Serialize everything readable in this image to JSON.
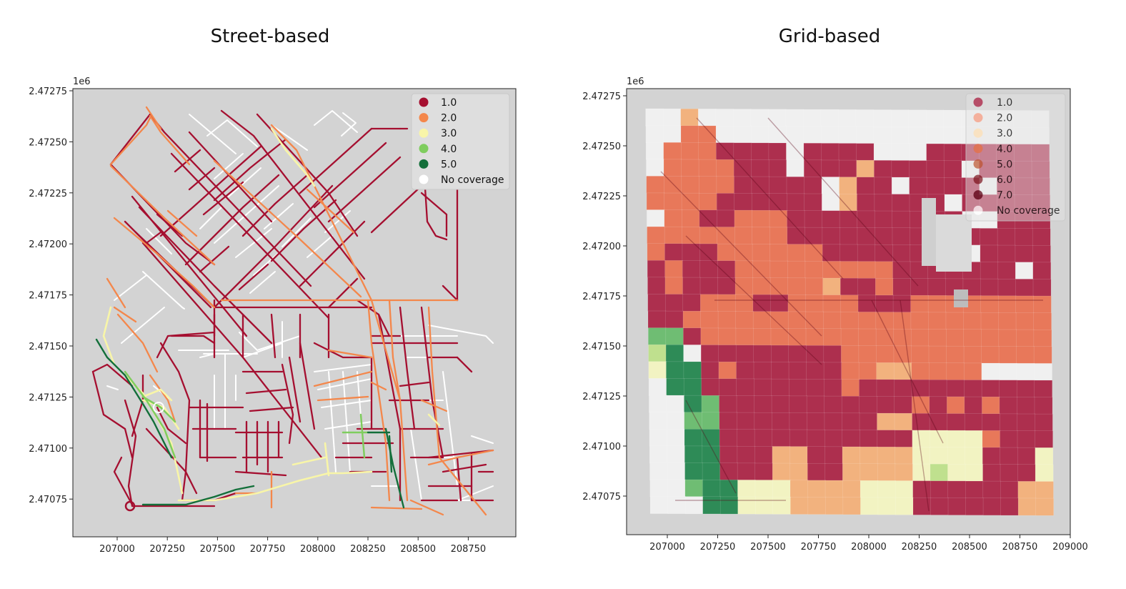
{
  "titles": {
    "left": "Street-based",
    "right": "Grid-based"
  },
  "chart_data": [
    {
      "type": "map",
      "title": "Street-based",
      "y_offset_label": "1e6",
      "x_ticks": [
        "207000",
        "207250",
        "207500",
        "207750",
        "208000",
        "208250",
        "208500",
        "208750"
      ],
      "y_ticks": [
        "2.47275",
        "2.47250",
        "2.47225",
        "2.47200",
        "2.47175",
        "2.47150",
        "2.47125",
        "2.47100",
        "2.47075"
      ],
      "xlim": [
        206800,
        208950
      ],
      "ylim": [
        2470550,
        2472790
      ],
      "legend": {
        "placement": "top-right",
        "entries": [
          {
            "label": "1.0",
            "color": "#a50f30"
          },
          {
            "label": "2.0",
            "color": "#f4874b"
          },
          {
            "label": "3.0",
            "color": "#f8f5a8"
          },
          {
            "label": "4.0",
            "color": "#7fcd5e"
          },
          {
            "label": "5.0",
            "color": "#136f3a"
          },
          {
            "label": "No coverage",
            "color": "#ffffff"
          }
        ]
      },
      "background": "#d3d3d3"
    },
    {
      "type": "heatmap",
      "title": "Grid-based",
      "y_offset_label": "1e6",
      "x_ticks": [
        "207000",
        "207250",
        "207500",
        "207750",
        "208000",
        "208250",
        "208500",
        "208750",
        "209000"
      ],
      "y_ticks": [
        "2.47275",
        "2.47250",
        "2.47225",
        "2.47200",
        "2.47175",
        "2.47150",
        "2.47125",
        "2.47100",
        "2.47075"
      ],
      "xlim": [
        206800,
        209000
      ],
      "ylim": [
        2470560,
        2472790
      ],
      "legend": {
        "placement": "top-right",
        "entries": [
          {
            "label": "1.0",
            "color": "#b03050"
          },
          {
            "label": "2.0",
            "color": "#f6a38a"
          },
          {
            "label": "3.0",
            "color": "#fbe0b8"
          },
          {
            "label": "4.0",
            "color": "#e9845a"
          },
          {
            "label": "5.0",
            "color": "#c46a4a"
          },
          {
            "label": "6.0",
            "color": "#8a3038"
          },
          {
            "label": "7.0",
            "color": "#6a1a2a"
          },
          {
            "label": "No coverage",
            "color": "#ffffff"
          }
        ]
      },
      "cell_colors": {
        "1": "#ad2f4e",
        "2": "#e8785a",
        "3": "#f2b27e",
        "4": "#f2f3c2",
        "5": "#bfe08e",
        "6": "#6fbd73",
        "7": "#2e8b57",
        "0": "#f0f0f0"
      },
      "grid": [
        "00300000000000000000000",
        "00220000000000000000000",
        "02221111011110001111111",
        "02222111011131111101111",
        "22222111110311011110111",
        "22221111110311111011111",
        "02211222111111111100111",
        "22222222111111110111111",
        "21112222221111111101111",
        "12111222222222111111101",
        "12111222223112111111111",
        "11122211222211122222222",
        "11222222222222222222222",
        "66122222222222222222222",
        "57011111111222222222222",
        "47712111111223322220000",
        "07711111111211111111111",
        "00761111111111121212111",
        "00661111111113311111111",
        "00771111111111144442111",
        "00771113311333344441114",
        "00771113311333345441114",
        "00677444333344411111133",
        "00077444333344411111133"
      ],
      "background": "#d3d3d3"
    }
  ]
}
